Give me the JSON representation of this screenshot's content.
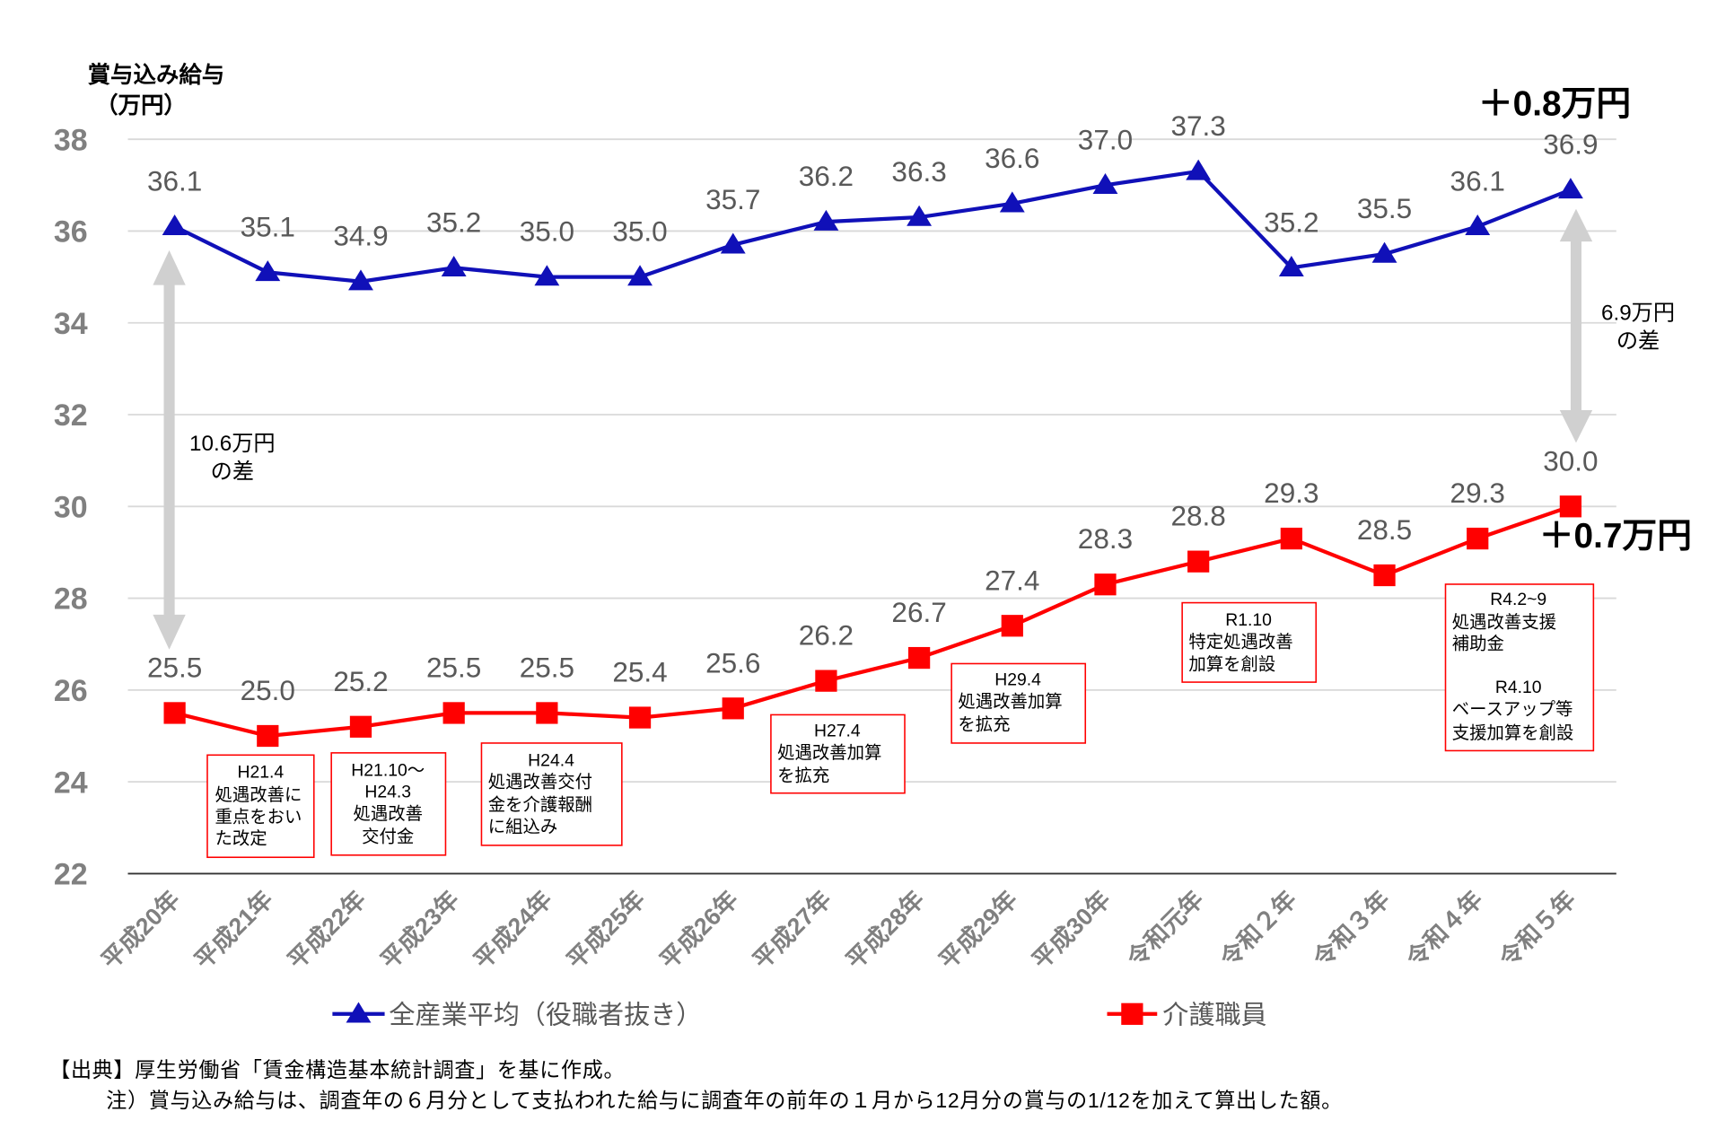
{
  "chart_data": {
    "type": "line",
    "ylabel": "賞与込み給与",
    "yunit": "（万円）",
    "ylim": [
      22,
      38
    ],
    "yticks": [
      22,
      24,
      26,
      28,
      30,
      32,
      34,
      36,
      38
    ],
    "grid": true,
    "legend": "bottom",
    "categories": [
      "平成20年",
      "平成21年",
      "平成22年",
      "平成23年",
      "平成24年",
      "平成25年",
      "平成26年",
      "平成27年",
      "平成28年",
      "平成29年",
      "平成30年",
      "令和元年",
      "令和２年",
      "令和３年",
      "令和４年",
      "令和５年"
    ],
    "series": [
      {
        "name": "全産業平均（役職者抜き）",
        "marker": "triangle",
        "color": "#1010b8",
        "values": [
          36.1,
          35.1,
          34.9,
          35.2,
          35.0,
          35.0,
          35.7,
          36.2,
          36.3,
          36.6,
          37.0,
          37.3,
          35.2,
          35.5,
          36.1,
          36.9
        ]
      },
      {
        "name": "介護職員",
        "marker": "square",
        "color": "#ff0000",
        "values": [
          25.5,
          25.0,
          25.2,
          25.5,
          25.5,
          25.4,
          25.6,
          26.2,
          26.7,
          27.4,
          28.3,
          28.8,
          29.3,
          28.5,
          29.3,
          30.0
        ]
      }
    ],
    "annotations": {
      "change_all_industry": "＋0.8万円",
      "change_care_workers": "＋0.7万円",
      "gap_start": [
        "10.6万円",
        "の差"
      ],
      "gap_end": [
        "6.9万円",
        "の差"
      ],
      "policy_notes": [
        {
          "lines": [
            "H21.4",
            "処遇改善に",
            "重点をおい",
            "た改定"
          ]
        },
        {
          "lines": [
            "H21.10～",
            "H24.3",
            "処遇改善",
            "交付金"
          ]
        },
        {
          "lines": [
            "H24.4",
            "処遇改善交付",
            "金を介護報酬",
            "に組込み"
          ]
        },
        {
          "lines": [
            "H27.4",
            "処遇改善加算",
            "を拡充"
          ]
        },
        {
          "lines": [
            "H29.4",
            "処遇改善加算",
            "を拡充"
          ]
        },
        {
          "lines": [
            "R1.10",
            "特定処遇改善",
            "加算を創設"
          ]
        },
        {
          "lines": [
            "R4.2~9",
            "処遇改善支援",
            "補助金",
            "R4.10",
            "ベースアップ等",
            "支援加算を創設"
          ]
        }
      ]
    }
  },
  "footer": {
    "source": "【出典】厚生労働省「賃金構造基本統計調査」を基に作成。",
    "note": "注）賞与込み給与は、調査年の６月分として支払われた給与に調査年の前年の１月から12月分の賞与の1/12を加えて算出した額。"
  },
  "colors": {
    "gridline": "#d9d9d9",
    "axis": "#333333",
    "tick_text": "#808080",
    "label_text": "#595959",
    "gap_arrow": "#d0d0d0",
    "note_border": "#ff0000"
  }
}
